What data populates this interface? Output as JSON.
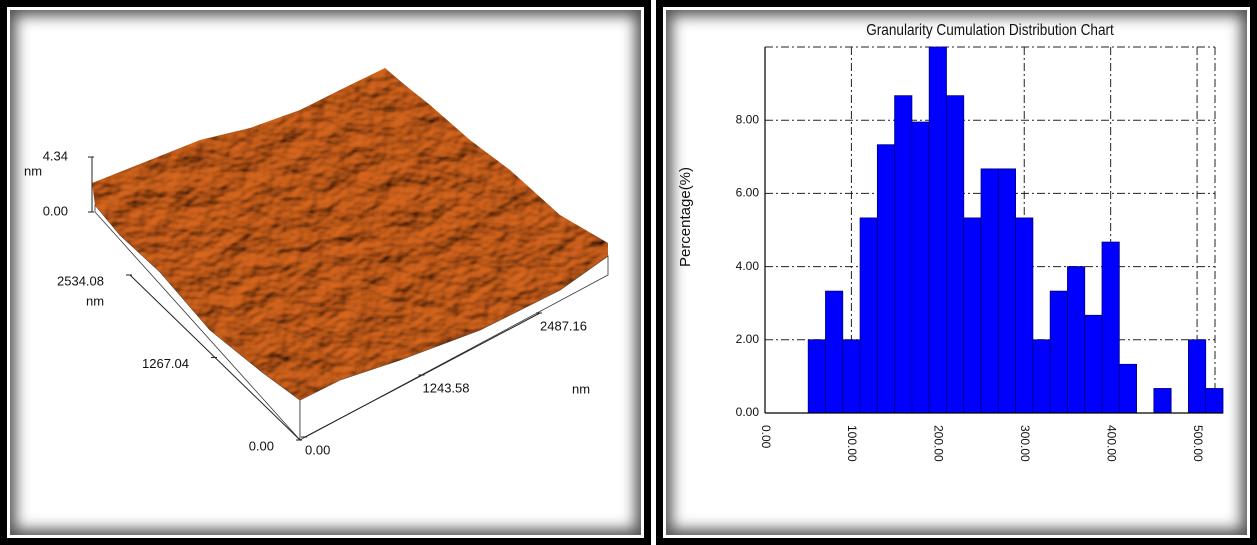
{
  "chart_data": [
    {
      "type": "surface",
      "zticks": [
        {
          "value": 0,
          "label": "0.00"
        },
        4.34
      ],
      "z_unit": "nm",
      "yticks": [
        {
          "value": 0,
          "label": "0.00"
        },
        1267.04,
        2534.08
      ],
      "y_unit": "nm",
      "xticks": [
        {
          "value": 0,
          "label": "0.00"
        },
        1243.58,
        2487.16
      ],
      "x_unit": "nm"
    },
    {
      "type": "histogram",
      "title": "Granularity Cumulation Distribution  Chart",
      "y_label": "Percentage(%)",
      "bins": [
        50,
        70,
        90,
        110,
        130,
        150,
        170,
        190,
        210,
        230,
        250,
        270,
        290,
        310,
        330,
        350,
        370,
        390,
        410,
        430,
        450,
        470,
        490,
        510,
        530
      ],
      "values": [
        2.0,
        3.33,
        2.0,
        5.33,
        7.33,
        8.67,
        7.95,
        10.0,
        8.67,
        5.33,
        6.67,
        6.67,
        5.33,
        2.0,
        3.33,
        4.0,
        2.67,
        4.67,
        1.33,
        0,
        0.67,
        0,
        2.0,
        0.67
      ],
      "color": "#0000ff",
      "xlim": [
        0,
        530
      ],
      "ylim": [
        0,
        10
      ],
      "xticks": [
        {
          "value": 0,
          "label": "0.00"
        },
        {
          "value": 100,
          "label": "100.00"
        },
        {
          "value": 200,
          "label": "200.00"
        },
        {
          "value": 300,
          "label": "300.00"
        },
        {
          "value": 400,
          "label": "400.00"
        },
        {
          "value": 500,
          "label": "500.00"
        }
      ],
      "yticks": [
        {
          "value": 0,
          "label": "0.00"
        },
        {
          "value": 2,
          "label": "2.00"
        },
        {
          "value": 4,
          "label": "4.00"
        },
        {
          "value": 6,
          "label": "6.00"
        },
        {
          "value": 8,
          "label": "8.00"
        }
      ],
      "grid": true
    }
  ]
}
